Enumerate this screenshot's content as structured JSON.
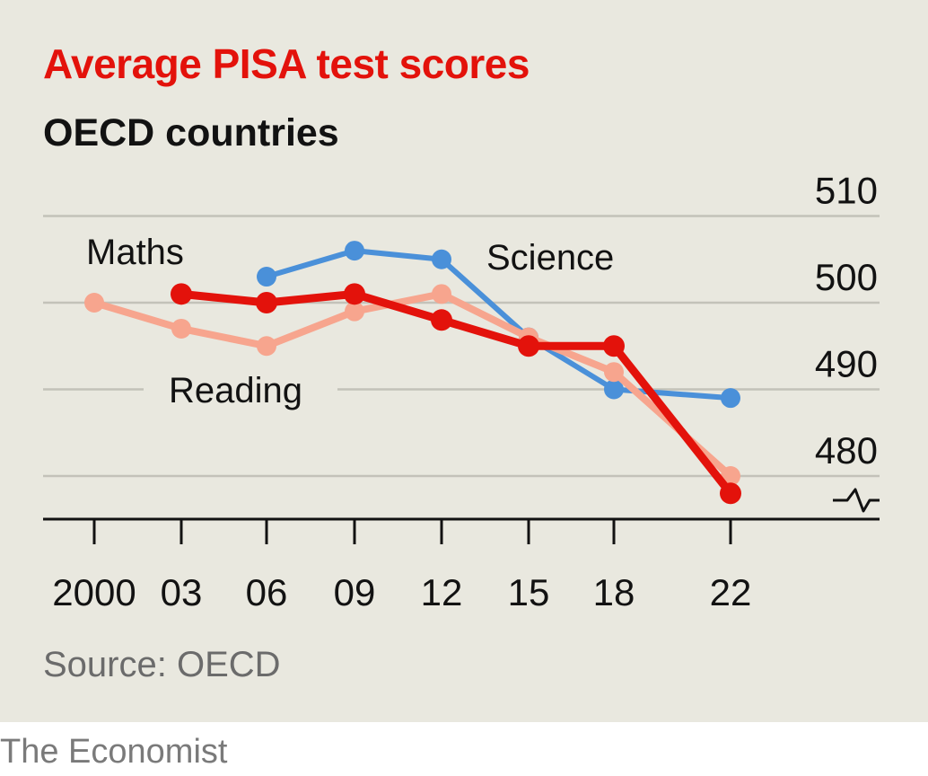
{
  "title": "Average PISA test scores",
  "subtitle": "OECD countries",
  "source": "Source: OECD",
  "brand": "The Economist",
  "chart_data": {
    "type": "line",
    "x": [
      2000,
      2003,
      2006,
      2009,
      2012,
      2015,
      2018,
      2022
    ],
    "x_tick_labels": [
      "2000",
      "03",
      "06",
      "09",
      "12",
      "15",
      "18",
      "22"
    ],
    "ylim": [
      478,
      510
    ],
    "y_ticks": [
      480,
      490,
      500,
      510
    ],
    "y_axis_side": "right",
    "y_axis_break": true,
    "grid": true,
    "series": [
      {
        "name": "Science",
        "color": "#4a90d9",
        "values": [
          null,
          null,
          503,
          506,
          505,
          496,
          490,
          489
        ]
      },
      {
        "name": "Reading",
        "color": "#f7a58e",
        "values": [
          500,
          497,
          495,
          499,
          501,
          496,
          492,
          480
        ]
      },
      {
        "name": "Maths",
        "color": "#e3120b",
        "values": [
          null,
          501,
          500,
          501,
          498,
          495,
          495,
          478
        ]
      }
    ]
  }
}
